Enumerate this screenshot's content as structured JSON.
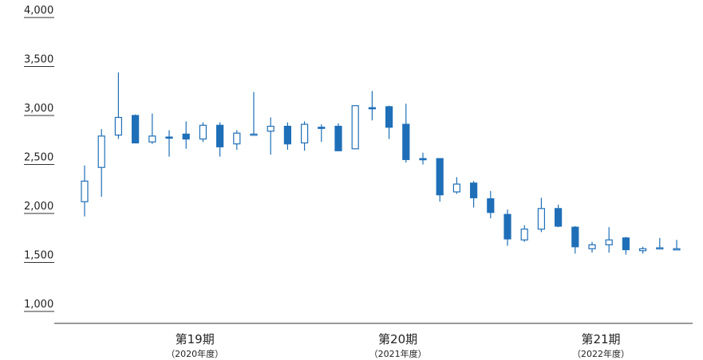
{
  "chart_data": {
    "type": "candlestick",
    "ylim": [
      1000,
      4000
    ],
    "yticks": [
      "4,000",
      "3,500",
      "3,000",
      "2,500",
      "2,000",
      "1,500",
      "1,000"
    ],
    "yticks_values": [
      4000,
      3500,
      3000,
      2500,
      2000,
      1500,
      1000
    ],
    "period_labels": [
      {
        "label": "第19期",
        "sub": "（2020年度）",
        "at_candle": 6
      },
      {
        "label": "第20期",
        "sub": "（2021年度）",
        "at_candle": 18
      },
      {
        "label": "第21期",
        "sub": "（2022年度）",
        "at_candle": 30
      }
    ],
    "colors": {
      "up_stroke": "#1f6fb8",
      "down_fill": "#1f6fb8",
      "axis": "#333333"
    },
    "candles": [
      {
        "open": 2120,
        "close": 2330,
        "high": 2490,
        "low": 1970
      },
      {
        "open": 2470,
        "close": 2790,
        "high": 2860,
        "low": 2170
      },
      {
        "open": 2800,
        "close": 2980,
        "high": 3440,
        "low": 2760
      },
      {
        "open": 3000,
        "close": 2720,
        "high": 3010,
        "low": 2720
      },
      {
        "open": 2730,
        "close": 2790,
        "high": 3020,
        "low": 2710
      },
      {
        "open": 2780,
        "close": 2770,
        "high": 2850,
        "low": 2580
      },
      {
        "open": 2810,
        "close": 2760,
        "high": 2940,
        "low": 2660
      },
      {
        "open": 2760,
        "close": 2900,
        "high": 2930,
        "low": 2730
      },
      {
        "open": 2900,
        "close": 2680,
        "high": 2930,
        "low": 2580
      },
      {
        "open": 2710,
        "close": 2820,
        "high": 2850,
        "low": 2650
      },
      {
        "open": 2800,
        "close": 2810,
        "high": 3240,
        "low": 2800
      },
      {
        "open": 2840,
        "close": 2890,
        "high": 2980,
        "low": 2600
      },
      {
        "open": 2890,
        "close": 2710,
        "high": 2930,
        "low": 2650
      },
      {
        "open": 2720,
        "close": 2910,
        "high": 2940,
        "low": 2640
      },
      {
        "open": 2880,
        "close": 2870,
        "high": 2910,
        "low": 2730
      },
      {
        "open": 2890,
        "close": 2640,
        "high": 2920,
        "low": 2640
      },
      {
        "open": 2660,
        "close": 3100,
        "high": 3100,
        "low": 2660
      },
      {
        "open": 3080,
        "close": 3070,
        "high": 3250,
        "low": 2950
      },
      {
        "open": 3090,
        "close": 2880,
        "high": 3100,
        "low": 2760
      },
      {
        "open": 2910,
        "close": 2550,
        "high": 3120,
        "low": 2520
      },
      {
        "open": 2560,
        "close": 2550,
        "high": 2620,
        "low": 2500
      },
      {
        "open": 2560,
        "close": 2190,
        "high": 2560,
        "low": 2120
      },
      {
        "open": 2220,
        "close": 2300,
        "high": 2370,
        "low": 2200
      },
      {
        "open": 2310,
        "close": 2160,
        "high": 2330,
        "low": 2060
      },
      {
        "open": 2150,
        "close": 2010,
        "high": 2230,
        "low": 1950
      },
      {
        "open": 1990,
        "close": 1740,
        "high": 2040,
        "low": 1670
      },
      {
        "open": 1730,
        "close": 1840,
        "high": 1880,
        "low": 1710
      },
      {
        "open": 1840,
        "close": 2050,
        "high": 2160,
        "low": 1810
      },
      {
        "open": 2050,
        "close": 1870,
        "high": 2090,
        "low": 1860
      },
      {
        "open": 1860,
        "close": 1660,
        "high": 1870,
        "low": 1590
      },
      {
        "open": 1640,
        "close": 1680,
        "high": 1710,
        "low": 1600
      },
      {
        "open": 1680,
        "close": 1730,
        "high": 1860,
        "low": 1600
      },
      {
        "open": 1750,
        "close": 1630,
        "high": 1760,
        "low": 1580
      },
      {
        "open": 1620,
        "close": 1640,
        "high": 1660,
        "low": 1590
      },
      {
        "open": 1640,
        "close": 1650,
        "high": 1750,
        "low": 1640
      },
      {
        "open": 1640,
        "close": 1640,
        "high": 1730,
        "low": 1640
      }
    ]
  }
}
